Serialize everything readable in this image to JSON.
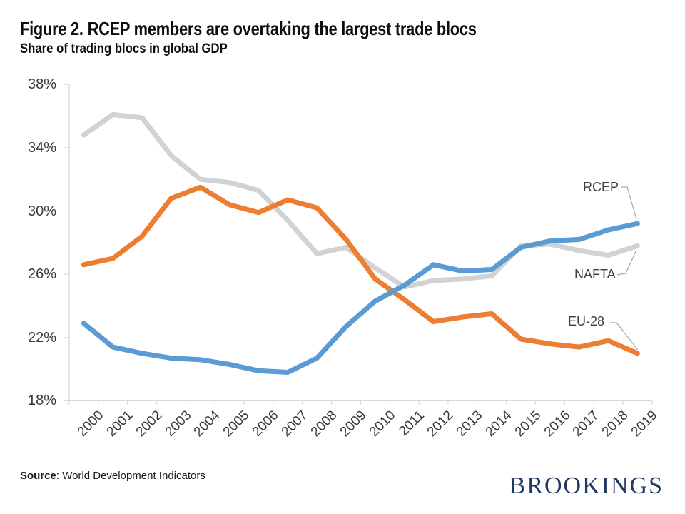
{
  "header": {
    "title": "Figure 2. RCEP members are overtaking the largest trade blocs",
    "subtitle": "Share of trading blocs in global GDP"
  },
  "footer": {
    "source_label": "Source",
    "source_text": ": World Development Indicators",
    "logo_text": "BROOKINGS",
    "logo_color": "#1f3864"
  },
  "chart_data": {
    "type": "line",
    "title": "Figure 2. RCEP members are overtaking the largest trade blocs",
    "subtitle": "Share of trading blocs in global GDP",
    "xlabel": "",
    "ylabel": "",
    "x": [
      2000,
      2001,
      2002,
      2003,
      2004,
      2005,
      2006,
      2007,
      2008,
      2009,
      2010,
      2011,
      2012,
      2013,
      2014,
      2015,
      2016,
      2017,
      2018,
      2019
    ],
    "series": [
      {
        "name": "NAFTA",
        "color": "#D0D2D4",
        "values": [
          34.8,
          36.1,
          35.9,
          33.5,
          32.0,
          31.8,
          31.3,
          29.4,
          27.3,
          27.7,
          26.4,
          25.2,
          25.6,
          25.7,
          25.9,
          27.8,
          27.9,
          27.5,
          27.2,
          27.8
        ]
      },
      {
        "name": "EU-28",
        "color": "#ED7D31",
        "values": [
          26.6,
          27.0,
          28.4,
          30.8,
          31.5,
          30.4,
          29.9,
          30.7,
          30.2,
          28.2,
          25.7,
          24.4,
          23.0,
          23.3,
          23.5,
          21.9,
          21.6,
          21.4,
          21.8,
          21.0
        ]
      },
      {
        "name": "RCEP",
        "color": "#5B9BD5",
        "values": [
          22.9,
          21.4,
          21.0,
          20.7,
          20.6,
          20.3,
          19.9,
          19.8,
          20.7,
          22.7,
          24.3,
          25.3,
          26.6,
          26.2,
          26.3,
          27.7,
          28.1,
          28.2,
          28.8,
          29.2
        ]
      }
    ],
    "ylim": [
      18,
      38
    ],
    "yticks": [
      38,
      34,
      30,
      26,
      22,
      18
    ],
    "ytick_labels": [
      "38%",
      "34%",
      "30%",
      "26%",
      "22%",
      "18%"
    ],
    "grid": false,
    "legend_position": "direct line labels at right end",
    "axis_color": "#D9D9D9",
    "tick_label_color": "#3a3a3a",
    "leader_line_color": "#A6A6A6"
  },
  "annotations": {
    "rcep_label": "RCEP",
    "nafta_label": "NAFTA",
    "eu28_label": "EU-28"
  }
}
